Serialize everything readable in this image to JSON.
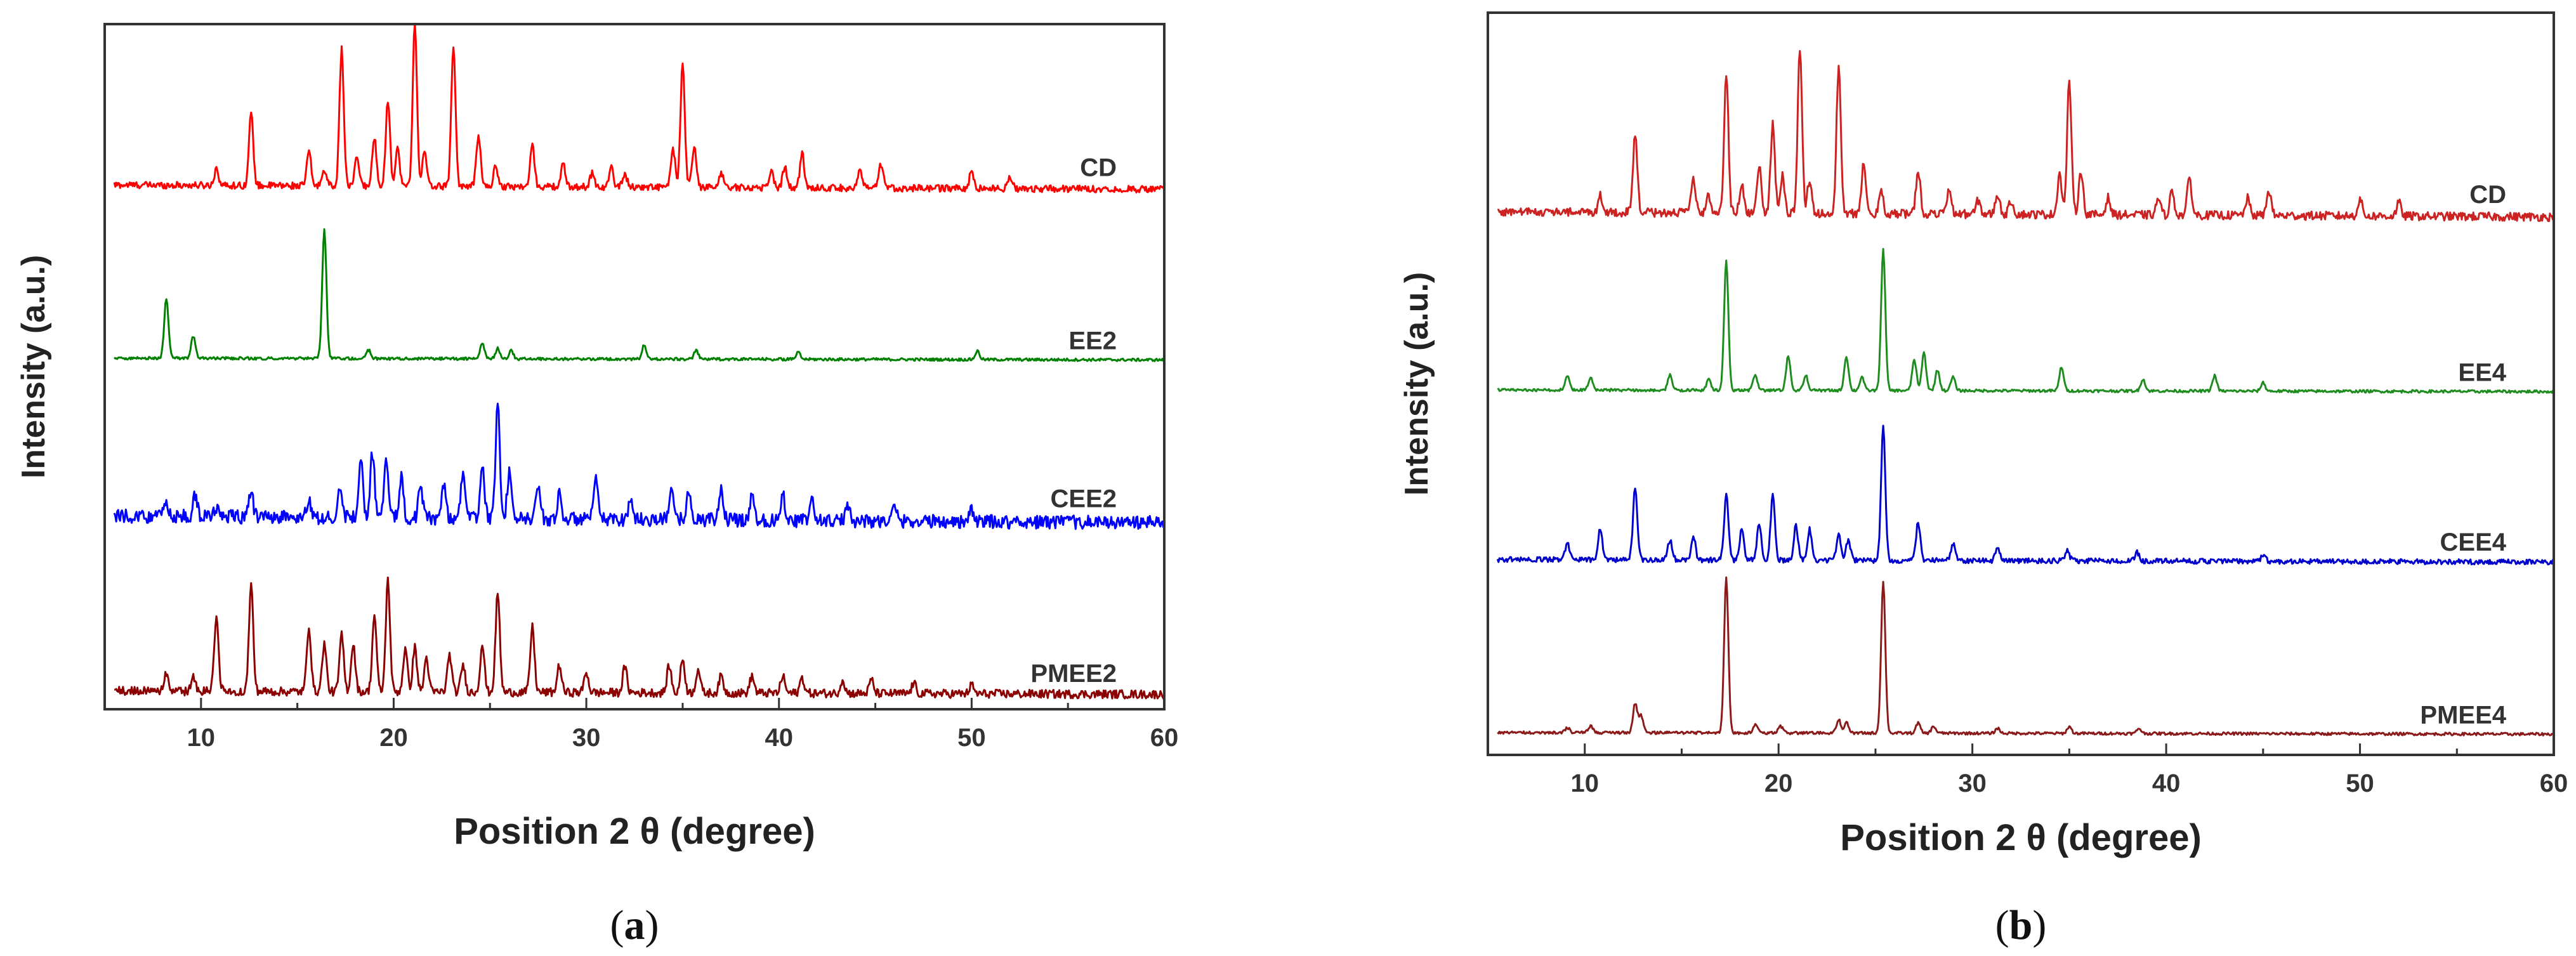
{
  "chart_data": [
    {
      "id": "a",
      "type": "line",
      "caption": "a",
      "xlabel": "Position 2 θ (degree)",
      "ylabel": "Intensity (a.u.)",
      "xlim": [
        5,
        60
      ],
      "xticks": [
        "10",
        "20",
        "30",
        "40",
        "50",
        "60"
      ],
      "xtick_values": [
        10,
        20,
        30,
        40,
        50,
        60
      ],
      "grid": false,
      "legend": "inline-right",
      "series": [
        {
          "name": "CD",
          "color": "#ff0000",
          "offset": 3.0,
          "baseline": 0.05,
          "noise": 0.02,
          "peaks": [
            [
              10.8,
              0.1
            ],
            [
              12.6,
              0.42
            ],
            [
              15.6,
              0.2
            ],
            [
              16.4,
              0.1
            ],
            [
              17.3,
              0.8
            ],
            [
              18.1,
              0.17
            ],
            [
              19.0,
              0.28
            ],
            [
              19.7,
              0.5
            ],
            [
              20.2,
              0.22
            ],
            [
              21.1,
              0.95
            ],
            [
              21.6,
              0.2
            ],
            [
              23.1,
              0.82
            ],
            [
              24.4,
              0.3
            ],
            [
              25.3,
              0.12
            ],
            [
              27.2,
              0.24
            ],
            [
              28.8,
              0.13
            ],
            [
              30.3,
              0.08
            ],
            [
              31.3,
              0.11
            ],
            [
              32.0,
              0.08
            ],
            [
              34.5,
              0.22
            ],
            [
              35.0,
              0.72
            ],
            [
              35.6,
              0.24
            ],
            [
              37.0,
              0.09
            ],
            [
              39.6,
              0.1
            ],
            [
              40.3,
              0.12
            ],
            [
              41.2,
              0.2
            ],
            [
              44.2,
              0.1
            ],
            [
              45.3,
              0.14
            ],
            [
              50.0,
              0.1
            ],
            [
              52.0,
              0.07
            ]
          ]
        },
        {
          "name": "EE2",
          "color": "#008000",
          "offset": 2.0,
          "baseline": 0.02,
          "noise": 0.008,
          "peaks": [
            [
              8.2,
              0.35
            ],
            [
              9.6,
              0.13
            ],
            [
              16.4,
              0.75
            ],
            [
              18.7,
              0.05
            ],
            [
              24.6,
              0.09
            ],
            [
              25.4,
              0.06
            ],
            [
              26.1,
              0.05
            ],
            [
              33.0,
              0.08
            ],
            [
              35.7,
              0.05
            ],
            [
              41.0,
              0.04
            ],
            [
              50.3,
              0.05
            ]
          ]
        },
        {
          "name": "CEE2",
          "color": "#0000ff",
          "offset": 1.0,
          "baseline": 0.08,
          "noise": 0.04,
          "peaks": [
            [
              8.2,
              0.08
            ],
            [
              9.7,
              0.12
            ],
            [
              10.8,
              0.06
            ],
            [
              12.6,
              0.14
            ],
            [
              15.6,
              0.1
            ],
            [
              17.2,
              0.18
            ],
            [
              18.3,
              0.32
            ],
            [
              18.9,
              0.38
            ],
            [
              19.6,
              0.34
            ],
            [
              20.4,
              0.24
            ],
            [
              21.4,
              0.18
            ],
            [
              22.6,
              0.2
            ],
            [
              23.6,
              0.28
            ],
            [
              24.6,
              0.32
            ],
            [
              25.4,
              0.66
            ],
            [
              26.0,
              0.26
            ],
            [
              27.5,
              0.2
            ],
            [
              28.6,
              0.14
            ],
            [
              30.5,
              0.22
            ],
            [
              32.3,
              0.12
            ],
            [
              34.4,
              0.18
            ],
            [
              35.3,
              0.16
            ],
            [
              37.0,
              0.18
            ],
            [
              38.6,
              0.15
            ],
            [
              40.2,
              0.16
            ],
            [
              41.7,
              0.12
            ],
            [
              43.6,
              0.1
            ],
            [
              46.0,
              0.08
            ],
            [
              50.0,
              0.06
            ]
          ]
        },
        {
          "name": "PMEE2",
          "color": "#8b0000",
          "offset": 0.0,
          "baseline": 0.04,
          "noise": 0.025,
          "peaks": [
            [
              8.2,
              0.1
            ],
            [
              9.6,
              0.08
            ],
            [
              10.8,
              0.45
            ],
            [
              12.6,
              0.62
            ],
            [
              15.6,
              0.38
            ],
            [
              16.4,
              0.28
            ],
            [
              17.3,
              0.33
            ],
            [
              17.9,
              0.28
            ],
            [
              19.0,
              0.45
            ],
            [
              19.7,
              0.65
            ],
            [
              20.6,
              0.25
            ],
            [
              21.1,
              0.26
            ],
            [
              21.7,
              0.2
            ],
            [
              22.9,
              0.22
            ],
            [
              23.6,
              0.16
            ],
            [
              24.6,
              0.28
            ],
            [
              25.4,
              0.58
            ],
            [
              27.2,
              0.38
            ],
            [
              28.6,
              0.16
            ],
            [
              30.0,
              0.12
            ],
            [
              32.0,
              0.15
            ],
            [
              34.3,
              0.16
            ],
            [
              35.0,
              0.2
            ],
            [
              35.8,
              0.14
            ],
            [
              37.0,
              0.1
            ],
            [
              38.6,
              0.1
            ],
            [
              40.2,
              0.1
            ],
            [
              41.2,
              0.09
            ],
            [
              43.3,
              0.08
            ],
            [
              44.8,
              0.08
            ],
            [
              47.0,
              0.06
            ],
            [
              50.0,
              0.05
            ]
          ]
        }
      ]
    },
    {
      "id": "b",
      "type": "line",
      "caption": "b",
      "xlabel": "Position 2 θ (degree)",
      "ylabel": "Intensity (a.u.)",
      "xlim": [
        5,
        60
      ],
      "xticks": [
        "10",
        "20",
        "30",
        "40",
        "50",
        "60"
      ],
      "xtick_values": [
        10,
        20,
        30,
        40,
        50,
        60
      ],
      "grid": false,
      "legend": "inline-right",
      "series": [
        {
          "name": "CD",
          "color": "#cc2222",
          "offset": 3.0,
          "baseline": 0.06,
          "noise": 0.025,
          "peaks": [
            [
              10.8,
              0.1
            ],
            [
              12.6,
              0.45
            ],
            [
              15.6,
              0.2
            ],
            [
              16.4,
              0.1
            ],
            [
              17.3,
              0.82
            ],
            [
              18.1,
              0.17
            ],
            [
              19.0,
              0.28
            ],
            [
              19.7,
              0.52
            ],
            [
              20.2,
              0.22
            ],
            [
              21.1,
              0.97
            ],
            [
              21.6,
              0.2
            ],
            [
              23.1,
              0.85
            ],
            [
              24.4,
              0.3
            ],
            [
              25.3,
              0.12
            ],
            [
              27.2,
              0.26
            ],
            [
              28.8,
              0.14
            ],
            [
              30.3,
              0.08
            ],
            [
              31.3,
              0.12
            ],
            [
              32.0,
              0.08
            ],
            [
              34.5,
              0.24
            ],
            [
              35.0,
              0.78
            ],
            [
              35.6,
              0.26
            ],
            [
              37.0,
              0.1
            ],
            [
              39.6,
              0.1
            ],
            [
              40.3,
              0.14
            ],
            [
              41.2,
              0.22
            ],
            [
              44.2,
              0.1
            ],
            [
              45.3,
              0.15
            ],
            [
              50.0,
              0.1
            ],
            [
              52.0,
              0.08
            ]
          ]
        },
        {
          "name": "EE4",
          "color": "#1e8c1e",
          "offset": 2.0,
          "baseline": 0.02,
          "noise": 0.008,
          "peaks": [
            [
              9.1,
              0.08
            ],
            [
              10.3,
              0.07
            ],
            [
              14.4,
              0.09
            ],
            [
              16.4,
              0.07
            ],
            [
              17.3,
              0.75
            ],
            [
              18.8,
              0.09
            ],
            [
              20.5,
              0.2
            ],
            [
              21.4,
              0.09
            ],
            [
              23.5,
              0.2
            ],
            [
              24.3,
              0.08
            ],
            [
              25.4,
              0.82
            ],
            [
              27.0,
              0.18
            ],
            [
              27.5,
              0.22
            ],
            [
              28.2,
              0.12
            ],
            [
              29.0,
              0.08
            ],
            [
              34.6,
              0.14
            ],
            [
              38.8,
              0.07
            ],
            [
              42.5,
              0.09
            ],
            [
              45.0,
              0.05
            ]
          ]
        },
        {
          "name": "CEE4",
          "color": "#0000cc",
          "offset": 1.0,
          "baseline": 0.03,
          "noise": 0.015,
          "peaks": [
            [
              9.1,
              0.1
            ],
            [
              10.8,
              0.18
            ],
            [
              12.6,
              0.42
            ],
            [
              14.4,
              0.12
            ],
            [
              15.6,
              0.14
            ],
            [
              17.3,
              0.38
            ],
            [
              18.1,
              0.18
            ],
            [
              19.0,
              0.22
            ],
            [
              19.7,
              0.38
            ],
            [
              20.9,
              0.2
            ],
            [
              21.6,
              0.18
            ],
            [
              23.1,
              0.16
            ],
            [
              23.6,
              0.12
            ],
            [
              25.4,
              0.78
            ],
            [
              27.2,
              0.22
            ],
            [
              29.0,
              0.1
            ],
            [
              31.3,
              0.07
            ],
            [
              34.9,
              0.06
            ],
            [
              38.5,
              0.05
            ],
            [
              45.0,
              0.04
            ]
          ]
        },
        {
          "name": "PMEE4",
          "color": "#8b1a1a",
          "offset": 0.0,
          "baseline": 0.02,
          "noise": 0.008,
          "peaks": [
            [
              9.1,
              0.03
            ],
            [
              10.3,
              0.04
            ],
            [
              12.6,
              0.17
            ],
            [
              12.9,
              0.1
            ],
            [
              17.3,
              0.9
            ],
            [
              18.8,
              0.05
            ],
            [
              20.1,
              0.04
            ],
            [
              23.1,
              0.08
            ],
            [
              23.5,
              0.06
            ],
            [
              25.4,
              0.88
            ],
            [
              27.2,
              0.06
            ],
            [
              28.0,
              0.04
            ],
            [
              31.3,
              0.03
            ],
            [
              35.0,
              0.04
            ],
            [
              38.6,
              0.03
            ]
          ]
        }
      ]
    }
  ]
}
